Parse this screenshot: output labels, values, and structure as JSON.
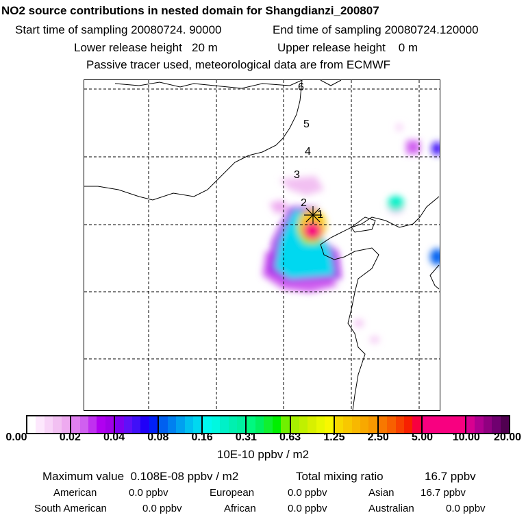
{
  "title": "NO2 source contributions in nested domain for Shangdianzi_200807",
  "start_label": "Start time of sampling 20080724. 90000",
  "end_label": "End time of sampling 20080724.120000",
  "lower_label": "Lower release height   20 m",
  "upper_label": "Upper release height    0 m",
  "tracer_label": "Passive tracer used, meteorological data are from ECMWF",
  "map_markers": [
    "6",
    "5",
    "4",
    "3",
    "2",
    "1"
  ],
  "colorbar": {
    "ticks": [
      "0.00",
      "0.02",
      "0.04",
      "0.08",
      "0.16",
      "0.31",
      "0.63",
      "1.25",
      "2.50",
      "5.00",
      "10.00",
      "20.00"
    ],
    "segments": [
      [
        "#ffffff",
        "#fde8fd",
        "#f8d4f8",
        "#f2c0f2",
        "#eeaaf0"
      ],
      [
        "#e080f0",
        "#d060f0",
        "#c030f0",
        "#b000f0",
        "#a000e8"
      ],
      [
        "#8000f0",
        "#6010f8",
        "#4010f8",
        "#2000f8",
        "#0020f8"
      ],
      [
        "#0060f0",
        "#0080f0",
        "#00a0f0",
        "#00c0f0",
        "#00d8f0"
      ],
      [
        "#00f8f0",
        "#00f8e0",
        "#00f0c8",
        "#00f0b0",
        "#00f0a0"
      ],
      [
        "#00f880",
        "#00f060",
        "#10f030",
        "#00f000",
        "#70f000"
      ],
      [
        "#a8f000",
        "#c0f000",
        "#d8f000",
        "#e8f800",
        "#f8f800"
      ],
      [
        "#f8d800",
        "#f8c800",
        "#f8b800",
        "#f8a800",
        "#f89800"
      ],
      [
        "#f87800",
        "#f86000",
        "#f84000",
        "#f82000",
        "#f80040"
      ],
      [
        "#f80080",
        "#f80080",
        "#f80080",
        "#f80080",
        "#f80080"
      ],
      [
        "#d80090",
        "#b00090",
        "#900080",
        "#700070",
        "#500050"
      ]
    ],
    "units": "10E-10 ppbv / m2"
  },
  "summary": {
    "max_label": "Maximum value  0.108E-08 ppbv / m2",
    "total_label": "Total mixing ratio",
    "total_value": "16.7 ppbv",
    "rows": [
      [
        {
          "name": "American",
          "value": "0.0 ppbv"
        },
        {
          "name": "European",
          "value": "0.0 ppbv"
        },
        {
          "name": "Asian",
          "value": "16.7 ppbv"
        }
      ],
      [
        {
          "name": "South American",
          "value": "0.0 ppbv"
        },
        {
          "name": "African",
          "value": "0.0 ppbv"
        },
        {
          "name": "Australian",
          "value": "0.0 ppbv"
        }
      ]
    ]
  }
}
